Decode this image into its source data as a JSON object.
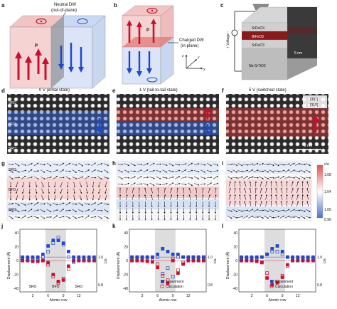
{
  "panels": {
    "a": {
      "letter": "a",
      "dw_label_1": "Neutral DW",
      "dw_label_2": "(out-of-plane)",
      "p_label": "P"
    },
    "b": {
      "letter": "b",
      "dw_label_1": "Charged DW",
      "dw_label_2": "(in-plane)",
      "p_label": "P"
    },
    "axes": {
      "z": "z",
      "y": "y",
      "x": "x"
    },
    "c": {
      "letter": "c",
      "voltage": "+ Voltage -",
      "layers": [
        "SrRuO3",
        "BiFeO3",
        "SrRuO3",
        "Nb-SrTiO3"
      ],
      "scale": "5 nm"
    },
    "d": {
      "letter": "d",
      "title": "0 V (initial state)",
      "layers": [
        "SRO",
        "BFO",
        "SRO"
      ]
    },
    "e": {
      "letter": "e",
      "title": "1 V (tail-to-tail state)"
    },
    "f": {
      "letter": "f",
      "title": "5 V (switched state)",
      "dir1": "[001]",
      "dir2": "[010]",
      "scale": "2 nm"
    },
    "g": {
      "letter": "g",
      "layers": [
        "SRO",
        "BFO",
        "SRO"
      ]
    },
    "h": {
      "letter": "h"
    },
    "i": {
      "letter": "i"
    },
    "colorbar": {
      "title": "c/a",
      "ticks": [
        "1.08",
        "1.04",
        "1.00",
        "0.96"
      ]
    },
    "j": {
      "letter": "j",
      "regions": [
        "SRO",
        "BFO",
        "SRO"
      ]
    },
    "k": {
      "letter": "k"
    },
    "l": {
      "letter": "l"
    },
    "plot_common": {
      "ylabel_left": "Displacement (Å)",
      "ylabel_right": "c/a",
      "xlabel": "Atomic row",
      "xticks": [
        "3",
        "6",
        "9",
        "12"
      ],
      "yticks_left": [
        "40",
        "20",
        "0",
        "-20",
        "-40"
      ],
      "yticks_right": [
        "1.0",
        "0.8"
      ],
      "legend_exp": "Experiment",
      "legend_calc": "Calculation"
    }
  },
  "colors": {
    "red": "#c8102e",
    "blue": "#1f49c7",
    "pink": "#f3c6c6",
    "lightblue": "#c9d8f3",
    "grey": "#dddddd"
  },
  "chart_data": [
    {
      "panel": "j",
      "type": "scatter",
      "x": [
        1,
        2,
        3,
        4,
        5,
        6,
        7,
        8,
        9,
        10,
        11,
        12,
        13,
        14,
        15
      ],
      "series": [
        {
          "name": "Experiment",
          "axis": "left",
          "values": [
            0,
            0,
            -1,
            -1,
            0,
            -3,
            -20,
            -30,
            -28,
            -8,
            0,
            0,
            0,
            0,
            0
          ]
        },
        {
          "name": "Experiment",
          "axis": "right",
          "values": [
            1.0,
            1.0,
            1.0,
            1.0,
            1.02,
            1.08,
            1.12,
            1.12,
            1.1,
            1.04,
            1.0,
            1.0,
            1.0,
            1.0,
            1.0
          ]
        },
        {
          "name": "Calculation",
          "axis": "left",
          "values": [
            0,
            0,
            0,
            0,
            0,
            -6,
            -23,
            -32,
            -26,
            -12,
            -2,
            0,
            0,
            0,
            0
          ]
        },
        {
          "name": "Calculation",
          "axis": "right",
          "values": [
            0.98,
            0.98,
            0.98,
            0.98,
            1.0,
            1.04,
            1.1,
            1.14,
            1.09,
            1.0,
            0.97,
            0.98,
            0.98,
            0.98,
            0.98
          ]
        }
      ],
      "xlabel": "Atomic row",
      "ylabel": "Displacement (Å)",
      "ylim": [
        -45,
        45
      ]
    },
    {
      "panel": "k",
      "type": "scatter",
      "x": [
        1,
        2,
        3,
        4,
        5,
        6,
        7,
        8,
        9,
        10,
        11,
        12,
        13,
        14,
        15
      ],
      "series": [
        {
          "name": "Experiment",
          "axis": "left",
          "values": [
            0,
            0,
            0,
            -1,
            -2,
            -10,
            -30,
            -33,
            0,
            -18,
            -5,
            0,
            0,
            0,
            0
          ]
        },
        {
          "name": "Experiment",
          "axis": "right",
          "values": [
            1.0,
            1.0,
            1.0,
            1.0,
            1.0,
            1.02,
            1.06,
            1.04,
            1.02,
            1.02,
            1.0,
            1.0,
            1.0,
            1.0,
            1.0
          ]
        },
        {
          "name": "Calculation",
          "axis": "left",
          "values": [
            0,
            0,
            0,
            0,
            0,
            -5,
            -22,
            -28,
            3,
            -14,
            -3,
            0,
            0,
            0,
            0
          ]
        },
        {
          "name": "Calculation",
          "axis": "right",
          "values": [
            1.0,
            1.0,
            1.0,
            1.0,
            1.0,
            1.0,
            0.88,
            0.92,
            0.86,
            1.0,
            1.0,
            1.0,
            1.0,
            1.0,
            1.0
          ]
        }
      ],
      "xlabel": "Atomic row",
      "ylabel": "Displacement (Å)",
      "ylim": [
        -45,
        45
      ]
    },
    {
      "panel": "l",
      "type": "scatter",
      "x": [
        1,
        2,
        3,
        4,
        5,
        6,
        7,
        8,
        9,
        10,
        11,
        12,
        13,
        14,
        15
      ],
      "series": [
        {
          "name": "Experiment",
          "axis": "left",
          "values": [
            0,
            0,
            0,
            -1,
            -3,
            -25,
            -35,
            -32,
            -24,
            -6,
            0,
            0,
            0,
            0,
            0
          ]
        },
        {
          "name": "Experiment",
          "axis": "right",
          "values": [
            1.0,
            1.0,
            1.0,
            1.0,
            1.0,
            1.02,
            1.06,
            1.08,
            1.04,
            1.0,
            1.0,
            1.0,
            1.0,
            1.0,
            1.0
          ]
        },
        {
          "name": "Calculation",
          "axis": "left",
          "values": [
            0,
            0,
            0,
            0,
            -2,
            -18,
            -30,
            -30,
            -22,
            -8,
            0,
            0,
            0,
            0,
            0
          ]
        },
        {
          "name": "Calculation",
          "axis": "right",
          "values": [
            0.99,
            0.99,
            0.99,
            0.99,
            1.0,
            1.02,
            1.04,
            1.04,
            1.02,
            1.0,
            0.99,
            0.99,
            0.99,
            0.99,
            0.99
          ]
        }
      ],
      "xlabel": "Atomic row",
      "ylabel": "Displacement (Å)",
      "ylim": [
        -45,
        45
      ]
    }
  ]
}
